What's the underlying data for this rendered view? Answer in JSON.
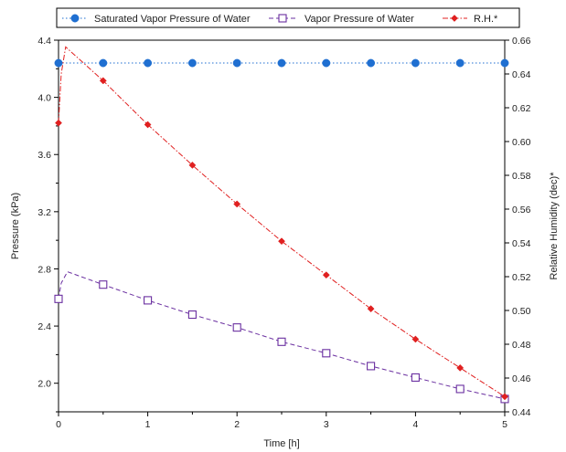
{
  "chart_data": {
    "type": "line",
    "xlabel": "Time [h]",
    "ylabel_left": "Pressure (kPa)",
    "ylabel_right": "Relative Humidity (dec)*",
    "xlim": [
      0,
      5
    ],
    "ylim_left": [
      1.8,
      4.4
    ],
    "ylim_right": [
      0.44,
      0.66
    ],
    "x_ticks": [
      "0",
      "1",
      "2",
      "3",
      "4",
      "5"
    ],
    "y_left_ticks": [
      "2.0",
      "2.4",
      "2.8",
      "3.2",
      "3.6",
      "4.0",
      "4.4"
    ],
    "y_right_ticks": [
      "0.44",
      "0.46",
      "0.48",
      "0.50",
      "0.52",
      "0.54",
      "0.56",
      "0.58",
      "0.60",
      "0.62",
      "0.64",
      "0.66"
    ],
    "grid": false,
    "legend_position": "top",
    "series": [
      {
        "name": "Saturated Vapor Pressure of Water",
        "axis": "left",
        "color": "#1f6fd1",
        "marker": "filled-circle",
        "line_style": "dotted",
        "line": [
          [
            0,
            4.24
          ],
          [
            5,
            4.24
          ]
        ],
        "markers": [
          [
            0,
            4.24
          ],
          [
            0.5,
            4.24
          ],
          [
            1,
            4.24
          ],
          [
            1.5,
            4.24
          ],
          [
            2,
            4.24
          ],
          [
            2.5,
            4.24
          ],
          [
            3,
            4.24
          ],
          [
            3.5,
            4.24
          ],
          [
            4,
            4.24
          ],
          [
            4.5,
            4.24
          ],
          [
            5,
            4.24
          ]
        ]
      },
      {
        "name": "Vapor Pressure of Water",
        "axis": "left",
        "color": "#6a2fa0",
        "marker": "open-square",
        "line_style": "dashed",
        "line": [
          [
            0,
            2.59
          ],
          [
            0.03,
            2.7
          ],
          [
            0.1,
            2.78
          ],
          [
            0.5,
            2.69
          ],
          [
            1,
            2.58
          ],
          [
            1.5,
            2.48
          ],
          [
            2,
            2.39
          ],
          [
            2.5,
            2.29
          ],
          [
            3,
            2.21
          ],
          [
            3.5,
            2.12
          ],
          [
            4,
            2.04
          ],
          [
            4.5,
            1.96
          ],
          [
            5,
            1.89
          ]
        ],
        "markers": [
          [
            0,
            2.59
          ],
          [
            0.5,
            2.69
          ],
          [
            1,
            2.58
          ],
          [
            1.5,
            2.48
          ],
          [
            2,
            2.39
          ],
          [
            2.5,
            2.29
          ],
          [
            3,
            2.21
          ],
          [
            3.5,
            2.12
          ],
          [
            4,
            2.04
          ],
          [
            4.5,
            1.96
          ],
          [
            5,
            1.89
          ]
        ]
      },
      {
        "name": "R.H.*",
        "axis": "right",
        "color": "#e02020",
        "marker": "filled-diamond",
        "line_style": "dash-dot",
        "line": [
          [
            0,
            0.611
          ],
          [
            0.03,
            0.64
          ],
          [
            0.08,
            0.656
          ],
          [
            0.5,
            0.636
          ],
          [
            1,
            0.61
          ],
          [
            1.5,
            0.586
          ],
          [
            2,
            0.563
          ],
          [
            2.5,
            0.541
          ],
          [
            3,
            0.521
          ],
          [
            3.5,
            0.501
          ],
          [
            4,
            0.483
          ],
          [
            4.5,
            0.466
          ],
          [
            5,
            0.449
          ]
        ],
        "markers": [
          [
            0,
            0.611
          ],
          [
            0.5,
            0.636
          ],
          [
            1,
            0.61
          ],
          [
            1.5,
            0.586
          ],
          [
            2,
            0.563
          ],
          [
            2.5,
            0.541
          ],
          [
            3,
            0.521
          ],
          [
            3.5,
            0.501
          ],
          [
            4,
            0.483
          ],
          [
            4.5,
            0.466
          ],
          [
            5,
            0.449
          ]
        ]
      }
    ]
  }
}
